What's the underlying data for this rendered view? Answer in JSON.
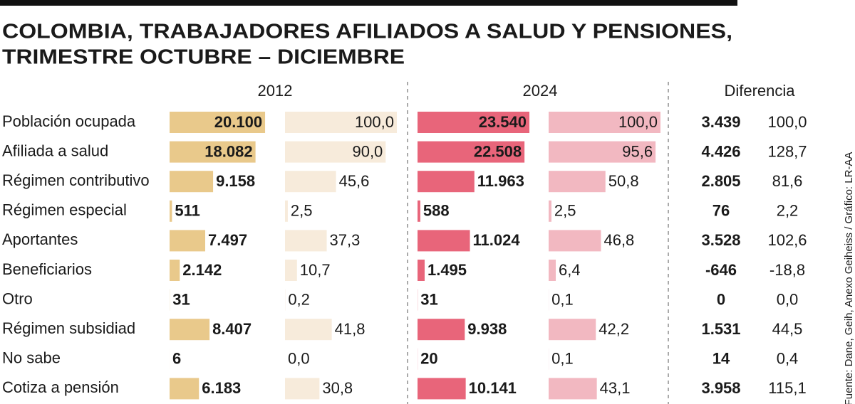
{
  "chart_data": {
    "type": "table-bar",
    "title": [
      "COLOMBIA, TRABAJADORES AFILIADOS A SALUD Y PENSIONES,",
      "TRIMESTRE OCTUBRE – DICIEMBRE"
    ],
    "source": "Fuente: Dane, Geih, Anexo Geiheiss / Gráfico: LR-AA",
    "categories": [
      "Población ocupada",
      "Afiliada a salud",
      "Régimen contributivo",
      "Régimen especial",
      "Aportantes",
      "Beneficiarios",
      "Otro",
      "Régimen subsidiad",
      "No sabe",
      "Cotiza a pensión"
    ],
    "columns": [
      {
        "name": "2012",
        "abs": {
          "color": "#e9c98b",
          "values": [
            20100,
            18082,
            9158,
            511,
            7497,
            2142,
            31,
            8407,
            6,
            6183
          ],
          "value_labels": [
            "20.100",
            "18.082",
            "9.158",
            "511",
            "7.497",
            "2.142",
            "31",
            "8.407",
            "6",
            "6.183"
          ]
        },
        "pct": {
          "color": "#f7ebdb",
          "values": [
            100.0,
            90.0,
            45.6,
            2.5,
            37.3,
            10.7,
            0.2,
            41.8,
            0.0,
            30.8
          ],
          "value_labels": [
            "100,0",
            "90,0",
            "45,6",
            "2,5",
            "37,3",
            "10,7",
            "0,2",
            "41,8",
            "0,0",
            "30,8"
          ]
        }
      },
      {
        "name": "2024",
        "abs": {
          "color": "#e8657a",
          "values": [
            23540,
            22508,
            11963,
            588,
            11024,
            1495,
            31,
            9938,
            20,
            10141
          ],
          "value_labels": [
            "23.540",
            "22.508",
            "11.963",
            "588",
            "11.024",
            "1.495",
            "31",
            "9.938",
            "20",
            "10.141"
          ]
        },
        "pct": {
          "color": "#f2b8c1",
          "values": [
            100.0,
            95.6,
            50.8,
            2.5,
            46.8,
            6.4,
            0.1,
            42.2,
            0.1,
            43.1
          ],
          "value_labels": [
            "100,0",
            "95,6",
            "50,8",
            "2,5",
            "46,8",
            "6,4",
            "0,1",
            "42,2",
            "0,1",
            "43,1"
          ]
        }
      }
    ],
    "difference": {
      "name": "Diferencia",
      "cells": [
        [
          "3.439",
          "100,0"
        ],
        [
          "4.426",
          "128,7"
        ],
        [
          "2.805",
          "81,6"
        ],
        [
          "76",
          "2,2"
        ],
        [
          "3.528",
          "102,6"
        ],
        [
          "-646",
          "-18,8"
        ],
        [
          "0",
          "0,0"
        ],
        [
          "1.531",
          "44,5"
        ],
        [
          "14",
          "0,4"
        ],
        [
          "3.958",
          "115,1"
        ]
      ]
    }
  }
}
